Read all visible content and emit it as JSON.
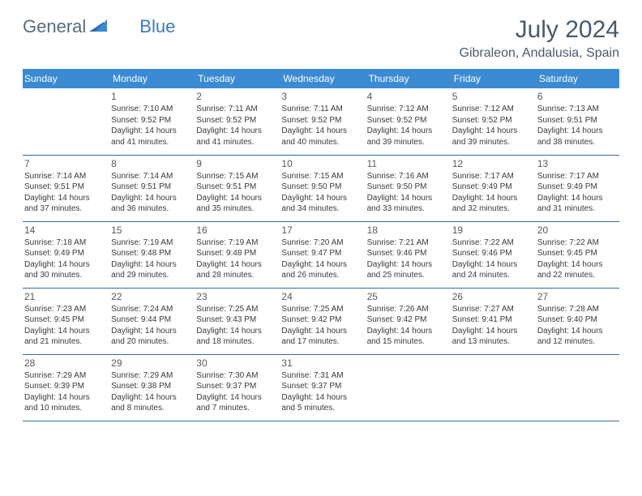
{
  "brand": {
    "part1": "General",
    "part2": "Blue"
  },
  "title": "July 2024",
  "location": "Gibraleon, Andalusia, Spain",
  "colors": {
    "header_bg": "#3b8bd4",
    "header_text": "#ffffff",
    "border": "#3b6a94",
    "brand_gray": "#5a6b7a",
    "brand_blue": "#3b7cc4",
    "title_gray": "#4a5a68",
    "cell_text": "#3a3a3a"
  },
  "day_headers": [
    "Sunday",
    "Monday",
    "Tuesday",
    "Wednesday",
    "Thursday",
    "Friday",
    "Saturday"
  ],
  "weeks": [
    [
      {
        "num": "",
        "sunrise": "",
        "sunset": "",
        "daylight": ""
      },
      {
        "num": "1",
        "sunrise": "Sunrise: 7:10 AM",
        "sunset": "Sunset: 9:52 PM",
        "daylight": "Daylight: 14 hours and 41 minutes."
      },
      {
        "num": "2",
        "sunrise": "Sunrise: 7:11 AM",
        "sunset": "Sunset: 9:52 PM",
        "daylight": "Daylight: 14 hours and 41 minutes."
      },
      {
        "num": "3",
        "sunrise": "Sunrise: 7:11 AM",
        "sunset": "Sunset: 9:52 PM",
        "daylight": "Daylight: 14 hours and 40 minutes."
      },
      {
        "num": "4",
        "sunrise": "Sunrise: 7:12 AM",
        "sunset": "Sunset: 9:52 PM",
        "daylight": "Daylight: 14 hours and 39 minutes."
      },
      {
        "num": "5",
        "sunrise": "Sunrise: 7:12 AM",
        "sunset": "Sunset: 9:52 PM",
        "daylight": "Daylight: 14 hours and 39 minutes."
      },
      {
        "num": "6",
        "sunrise": "Sunrise: 7:13 AM",
        "sunset": "Sunset: 9:51 PM",
        "daylight": "Daylight: 14 hours and 38 minutes."
      }
    ],
    [
      {
        "num": "7",
        "sunrise": "Sunrise: 7:14 AM",
        "sunset": "Sunset: 9:51 PM",
        "daylight": "Daylight: 14 hours and 37 minutes."
      },
      {
        "num": "8",
        "sunrise": "Sunrise: 7:14 AM",
        "sunset": "Sunset: 9:51 PM",
        "daylight": "Daylight: 14 hours and 36 minutes."
      },
      {
        "num": "9",
        "sunrise": "Sunrise: 7:15 AM",
        "sunset": "Sunset: 9:51 PM",
        "daylight": "Daylight: 14 hours and 35 minutes."
      },
      {
        "num": "10",
        "sunrise": "Sunrise: 7:15 AM",
        "sunset": "Sunset: 9:50 PM",
        "daylight": "Daylight: 14 hours and 34 minutes."
      },
      {
        "num": "11",
        "sunrise": "Sunrise: 7:16 AM",
        "sunset": "Sunset: 9:50 PM",
        "daylight": "Daylight: 14 hours and 33 minutes."
      },
      {
        "num": "12",
        "sunrise": "Sunrise: 7:17 AM",
        "sunset": "Sunset: 9:49 PM",
        "daylight": "Daylight: 14 hours and 32 minutes."
      },
      {
        "num": "13",
        "sunrise": "Sunrise: 7:17 AM",
        "sunset": "Sunset: 9:49 PM",
        "daylight": "Daylight: 14 hours and 31 minutes."
      }
    ],
    [
      {
        "num": "14",
        "sunrise": "Sunrise: 7:18 AM",
        "sunset": "Sunset: 9:49 PM",
        "daylight": "Daylight: 14 hours and 30 minutes."
      },
      {
        "num": "15",
        "sunrise": "Sunrise: 7:19 AM",
        "sunset": "Sunset: 9:48 PM",
        "daylight": "Daylight: 14 hours and 29 minutes."
      },
      {
        "num": "16",
        "sunrise": "Sunrise: 7:19 AM",
        "sunset": "Sunset: 9:48 PM",
        "daylight": "Daylight: 14 hours and 28 minutes."
      },
      {
        "num": "17",
        "sunrise": "Sunrise: 7:20 AM",
        "sunset": "Sunset: 9:47 PM",
        "daylight": "Daylight: 14 hours and 26 minutes."
      },
      {
        "num": "18",
        "sunrise": "Sunrise: 7:21 AM",
        "sunset": "Sunset: 9:46 PM",
        "daylight": "Daylight: 14 hours and 25 minutes."
      },
      {
        "num": "19",
        "sunrise": "Sunrise: 7:22 AM",
        "sunset": "Sunset: 9:46 PM",
        "daylight": "Daylight: 14 hours and 24 minutes."
      },
      {
        "num": "20",
        "sunrise": "Sunrise: 7:22 AM",
        "sunset": "Sunset: 9:45 PM",
        "daylight": "Daylight: 14 hours and 22 minutes."
      }
    ],
    [
      {
        "num": "21",
        "sunrise": "Sunrise: 7:23 AM",
        "sunset": "Sunset: 9:45 PM",
        "daylight": "Daylight: 14 hours and 21 minutes."
      },
      {
        "num": "22",
        "sunrise": "Sunrise: 7:24 AM",
        "sunset": "Sunset: 9:44 PM",
        "daylight": "Daylight: 14 hours and 20 minutes."
      },
      {
        "num": "23",
        "sunrise": "Sunrise: 7:25 AM",
        "sunset": "Sunset: 9:43 PM",
        "daylight": "Daylight: 14 hours and 18 minutes."
      },
      {
        "num": "24",
        "sunrise": "Sunrise: 7:25 AM",
        "sunset": "Sunset: 9:42 PM",
        "daylight": "Daylight: 14 hours and 17 minutes."
      },
      {
        "num": "25",
        "sunrise": "Sunrise: 7:26 AM",
        "sunset": "Sunset: 9:42 PM",
        "daylight": "Daylight: 14 hours and 15 minutes."
      },
      {
        "num": "26",
        "sunrise": "Sunrise: 7:27 AM",
        "sunset": "Sunset: 9:41 PM",
        "daylight": "Daylight: 14 hours and 13 minutes."
      },
      {
        "num": "27",
        "sunrise": "Sunrise: 7:28 AM",
        "sunset": "Sunset: 9:40 PM",
        "daylight": "Daylight: 14 hours and 12 minutes."
      }
    ],
    [
      {
        "num": "28",
        "sunrise": "Sunrise: 7:29 AM",
        "sunset": "Sunset: 9:39 PM",
        "daylight": "Daylight: 14 hours and 10 minutes."
      },
      {
        "num": "29",
        "sunrise": "Sunrise: 7:29 AM",
        "sunset": "Sunset: 9:38 PM",
        "daylight": "Daylight: 14 hours and 8 minutes."
      },
      {
        "num": "30",
        "sunrise": "Sunrise: 7:30 AM",
        "sunset": "Sunset: 9:37 PM",
        "daylight": "Daylight: 14 hours and 7 minutes."
      },
      {
        "num": "31",
        "sunrise": "Sunrise: 7:31 AM",
        "sunset": "Sunset: 9:37 PM",
        "daylight": "Daylight: 14 hours and 5 minutes."
      },
      {
        "num": "",
        "sunrise": "",
        "sunset": "",
        "daylight": ""
      },
      {
        "num": "",
        "sunrise": "",
        "sunset": "",
        "daylight": ""
      },
      {
        "num": "",
        "sunrise": "",
        "sunset": "",
        "daylight": ""
      }
    ]
  ]
}
